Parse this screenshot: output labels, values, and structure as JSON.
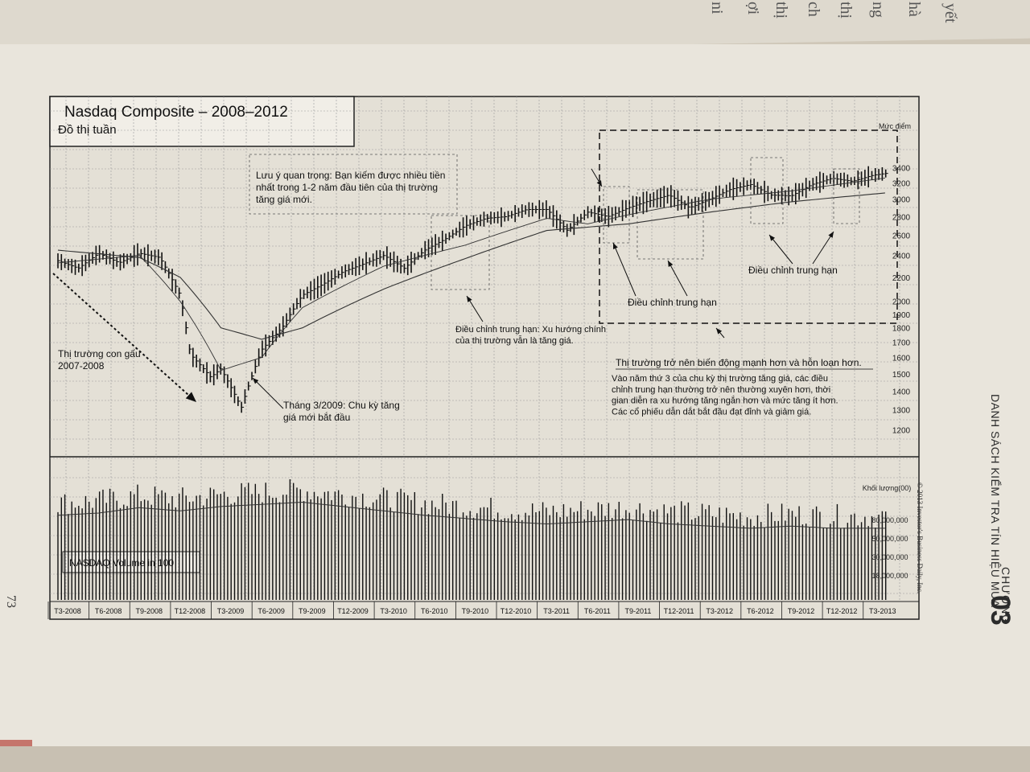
{
  "page_number": "73",
  "chapter": {
    "label": "CHƯƠNG",
    "number": "03",
    "title": "DANH SÁCH KIỂM TRA TÍN HIỆU MUA"
  },
  "prev_page_fragments": [
    "yết",
    "hà",
    "ng",
    "thị",
    "ch",
    "thị",
    "ợi",
    "ni"
  ],
  "copyright": "© 2013 Investor's Business Daily, Inc.",
  "chart_data": {
    "type": "bar",
    "title": "Nasdaq  Composite – 2008–2012",
    "subtitle": "Đồ thị tuần",
    "ylabel": "Mức điểm",
    "yscale": "log",
    "ylim": [
      1150,
      3550
    ],
    "y_ticks": [
      "3400",
      "3200",
      "3000",
      "2800",
      "2600",
      "2400",
      "2200",
      "2000",
      "1900",
      "1800",
      "1700",
      "1600",
      "1500",
      "1400",
      "1300",
      "1200"
    ],
    "x_ticks": [
      "T3-2008",
      "T6-2008",
      "T9-2008",
      "T12-2008",
      "T3-2009",
      "T6-2009",
      "T9-2009",
      "T12-2009",
      "T3-2010",
      "T6-2010",
      "T9-2010",
      "T12-2010",
      "T3-2011",
      "T6-2011",
      "T9-2011",
      "T12-2011",
      "T3-2012",
      "T6-2012",
      "T9-2012",
      "T12-2012",
      "T3-2013"
    ],
    "series": [
      {
        "name": "price",
        "x": [
          0,
          0.5,
          1,
          1.5,
          2,
          2.5,
          3,
          3.25,
          3.5,
          3.75,
          4,
          4.5,
          5,
          5.5,
          6,
          6.5,
          7,
          7.5,
          8,
          8.5,
          9,
          9.5,
          10,
          10.5,
          11,
          11.5,
          12,
          12.5,
          13,
          13.5,
          14,
          14.5,
          15,
          15.5,
          16,
          16.5,
          17,
          17.5,
          18,
          18.5,
          19,
          19.5,
          20,
          20.4
        ],
        "values": [
          2350,
          2280,
          2420,
          2330,
          2420,
          2380,
          2050,
          1620,
          1550,
          1480,
          1530,
          1310,
          1650,
          1800,
          2050,
          2140,
          2250,
          2320,
          2400,
          2280,
          2450,
          2560,
          2700,
          2780,
          2800,
          2880,
          2880,
          2650,
          2850,
          2800,
          2900,
          2980,
          3050,
          2900,
          3000,
          3120,
          3180,
          3050,
          3040,
          3180,
          3260,
          3220,
          3300,
          3330
        ]
      },
      {
        "name": "ma10",
        "x": [
          0,
          2,
          3,
          4,
          5,
          6,
          8,
          10,
          12,
          13,
          14,
          16,
          18,
          20.4
        ],
        "values": [
          2330,
          2400,
          2000,
          1520,
          1600,
          1950,
          2300,
          2500,
          2780,
          2720,
          2820,
          3000,
          3100,
          3270
        ]
      },
      {
        "name": "ma40",
        "x": [
          0,
          2,
          3,
          4,
          5,
          6,
          8,
          10,
          12,
          14,
          16,
          18,
          20.4
        ],
        "values": [
          2450,
          2380,
          2200,
          1800,
          1720,
          1800,
          2100,
          2370,
          2650,
          2720,
          2850,
          2970,
          3080
        ]
      }
    ],
    "annotations": [
      "Lưu ý quan trọng: Bạn kiếm được nhiều tiền nhất trong 1-2 năm đầu tiên của thị trường tăng giá mới.",
      "Thị trường con gấu 2007-2008",
      "Tháng 3/2009: Chu kỳ tăng giá mới bắt đầu",
      "Điều chỉnh trung hạn: Xu hướng chính của thị trường vẫn là tăng giá.",
      "Điều chỉnh trung hạn",
      "Điều chỉnh trung hạn",
      "Thị trường trở nên biến động mạnh hơn và hỗn loạn hơn.",
      "Vào năm thứ 3 của chu kỳ thị trường tăng giá, các điều chỉnh trung hạn thường trở nên thường xuyên hơn, thời gian diễn ra xu hướng tăng ngắn hơn và mức tăng ít hơn. Các cổ phiếu dẫn dắt bắt đầu đạt đỉnh và giảm giá."
    ],
    "volume": {
      "title": "NASDAQ Volume in 100",
      "ylabel": "Khối lượng(00)",
      "y_ticks": [
        "80,000,000",
        "50,000,000",
        "30,000,000",
        "18,000,000"
      ],
      "average": [
        0.78,
        0.8,
        0.85,
        0.82,
        0.86,
        0.88,
        0.9,
        0.86,
        0.82,
        0.78,
        0.75,
        0.72,
        0.7,
        0.72,
        0.74,
        0.7,
        0.68,
        0.66,
        0.68,
        0.66,
        0.66
      ]
    }
  }
}
